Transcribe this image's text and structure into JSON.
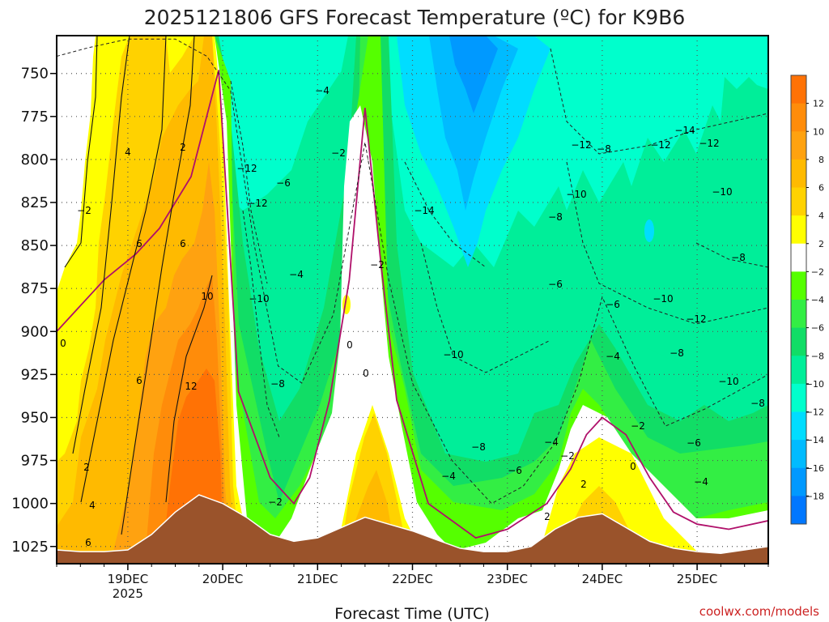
{
  "chart_data": {
    "type": "heatmap",
    "title": "2025121806 GFS Forecast Temperature (ºC) for K9B6",
    "xlabel": "Forecast Time (UTC)",
    "ylabel": "",
    "credit": "coolwx.com/models",
    "y_levels": [
      750,
      775,
      800,
      825,
      850,
      875,
      900,
      925,
      950,
      975,
      1000,
      1025
    ],
    "y_tick_labels": [
      "750",
      "775",
      "800",
      "825",
      "850",
      "875",
      "900",
      "925",
      "950",
      "975",
      "1000",
      "1025"
    ],
    "ylim": [
      728,
      1035
    ],
    "x_day_labels": [
      "19DEC",
      "20DEC",
      "21DEC",
      "22DEC",
      "23DEC",
      "24DEC",
      "25DEC"
    ],
    "x_year_label": "2025",
    "xlim_hours": [
      6,
      186
    ],
    "x_day_hours": [
      24,
      48,
      72,
      96,
      120,
      144,
      168
    ],
    "colorbar": {
      "ticks": [
        "12",
        "10",
        "8",
        "6",
        "4",
        "2",
        "-2",
        "-4",
        "-6",
        "-8",
        "-10",
        "-12",
        "-14",
        "-16",
        "-18"
      ],
      "bands": [
        {
          "lo": 12,
          "hi": 14,
          "color": "#ff7205"
        },
        {
          "lo": 10,
          "hi": 12,
          "color": "#ff8c0a"
        },
        {
          "lo": 8,
          "hi": 10,
          "color": "#ffa210"
        },
        {
          "lo": 6,
          "hi": 8,
          "color": "#ffba00"
        },
        {
          "lo": 4,
          "hi": 6,
          "color": "#ffd200"
        },
        {
          "lo": 2,
          "hi": 4,
          "color": "#ffff00"
        },
        {
          "lo": -2,
          "hi": 2,
          "color": "#ffffff"
        },
        {
          "lo": -4,
          "hi": -2,
          "color": "#55ff00"
        },
        {
          "lo": -6,
          "hi": -4,
          "color": "#33ee44"
        },
        {
          "lo": -8,
          "hi": -6,
          "color": "#11dd66"
        },
        {
          "lo": -10,
          "hi": -8,
          "color": "#00ee99"
        },
        {
          "lo": -12,
          "hi": -10,
          "color": "#00ffcc"
        },
        {
          "lo": -14,
          "hi": -12,
          "color": "#00ddff"
        },
        {
          "lo": -16,
          "hi": -14,
          "color": "#00bbff"
        },
        {
          "lo": -18,
          "hi": -16,
          "color": "#0099ff"
        },
        {
          "lo": -20,
          "hi": -18,
          "color": "#0077ff"
        }
      ]
    },
    "terrain_color": "#9a532b",
    "series": [
      {
        "name": "surface",
        "hour": [
          6,
          12,
          18,
          24,
          30,
          36,
          42,
          48,
          54,
          60,
          66,
          72,
          78,
          84,
          90,
          96,
          102,
          108,
          114,
          120,
          126,
          132,
          138,
          144,
          150,
          156,
          162,
          168,
          174,
          180,
          186
        ],
        "pressure": [
          1027,
          1028,
          1028,
          1027,
          1018,
          1005,
          995,
          1000,
          1008,
          1018,
          1022,
          1020,
          1014,
          1008,
          1012,
          1016,
          1021,
          1026,
          1028,
          1028,
          1025,
          1015,
          1008,
          1006,
          1014,
          1022,
          1026,
          1028,
          1029,
          1027,
          1025
        ]
      },
      {
        "name": "0C isotherm",
        "hour": [
          6,
          10,
          14,
          18,
          26,
          32,
          40,
          47,
          52,
          60,
          66,
          70,
          75,
          80,
          84,
          88,
          92,
          100,
          112,
          120,
          130,
          136,
          140,
          144,
          150,
          156,
          162,
          168,
          176,
          186
        ],
        "pressure": [
          900,
          890,
          880,
          870,
          855,
          840,
          810,
          748,
          935,
          985,
          1000,
          985,
          940,
          870,
          770,
          860,
          940,
          1000,
          1020,
          1015,
          1000,
          980,
          960,
          950,
          960,
          985,
          1005,
          1012,
          1015,
          1010
        ]
      },
      {
        "name": "-8C isotherm",
        "hour": [
          6,
          14,
          24,
          36,
          44,
          50,
          56,
          62,
          68,
          76,
          84,
          90,
          96,
          106,
          116,
          124,
          132,
          138,
          144,
          152,
          160,
          170,
          186
        ],
        "pressure": [
          740,
          735,
          730,
          730,
          740,
          760,
          850,
          920,
          930,
          890,
          790,
          870,
          930,
          975,
          1000,
          990,
          965,
          930,
          880,
          920,
          955,
          945,
          925
        ]
      }
    ],
    "contour_labels": [
      "-2",
      "4",
      "2",
      "6",
      "6",
      "10",
      "0",
      "6",
      "12",
      "2",
      "4",
      "6",
      "-12",
      "-12",
      "-6",
      "-4",
      "-10",
      "-8",
      "-2",
      "-4",
      "-2",
      "0",
      "0",
      "-2",
      "-14",
      "-10",
      "-8",
      "-4",
      "-6",
      "-12",
      "-8",
      "-10",
      "-8",
      "-6",
      "-4",
      "-2",
      "-6",
      "-4",
      "-2",
      "0",
      "2",
      "2",
      "-12",
      "-14",
      "-12",
      "-10",
      "-8",
      "-10",
      "-12",
      "-8",
      "-10",
      "-8",
      "-6",
      "-4"
    ]
  }
}
